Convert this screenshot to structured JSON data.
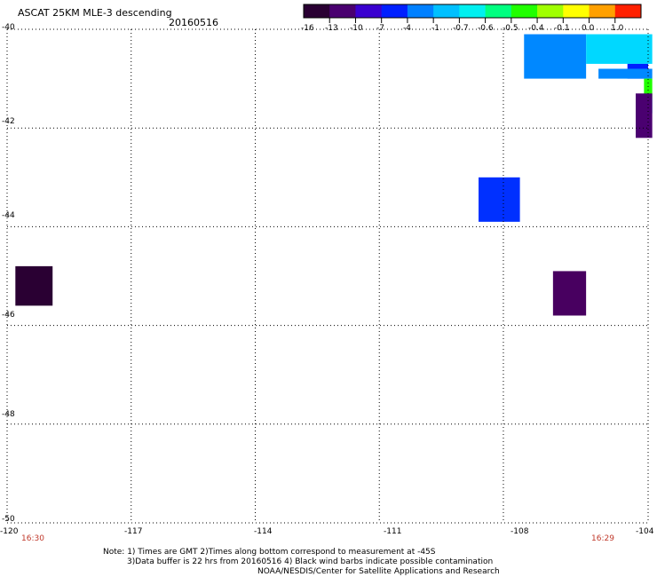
{
  "header": {
    "title": "ASCAT 25KM MLE-3 descending",
    "date": "20160516"
  },
  "colorbar": {
    "labels": [
      "-16",
      "-13",
      "-10",
      "-7",
      "-4",
      "-1",
      "-0.7",
      "-0.6",
      "-0.5",
      "-0.4",
      "-0.1",
      "0.0",
      "1.0"
    ],
    "colors": [
      "#2a0033",
      "#4a0070",
      "#3a00d0",
      "#0020ff",
      "#0080ff",
      "#00c0ff",
      "#00f0f0",
      "#00ff80",
      "#20ff00",
      "#a0ff00",
      "#ffff00",
      "#ffa000",
      "#ff2000"
    ]
  },
  "axes": {
    "lat_labels": [
      "-40",
      "-42",
      "-44",
      "-46",
      "-48",
      "-50"
    ],
    "lon_labels": [
      "-120",
      "-117",
      "-114",
      "-111",
      "-108",
      "-104"
    ],
    "lat_range": [
      -50,
      -40
    ],
    "lon_range": [
      -120,
      -104.5
    ]
  },
  "times": {
    "left": "16:30",
    "right": "16:29"
  },
  "notes": {
    "line1": "Note: 1) Times are GMT 2)Times along bottom correspond to measurement at -45S",
    "line2": "3)Data buffer is 22 hrs from 20160516 4) Black wind barbs indicate possible contamination",
    "line3": "NOAA/NESDIS/Center for Satellite Applications and Research"
  },
  "data_cells": [
    {
      "lon": [
        -107.5,
        -106.0
      ],
      "lat": [
        -40.1,
        -41.0
      ],
      "color": "#0088ff"
    },
    {
      "lon": [
        -106.0,
        -104.4
      ],
      "lat": [
        -40.1,
        -40.7
      ],
      "color": "#00d8ff"
    },
    {
      "lon": [
        -105.0,
        -104.5
      ],
      "lat": [
        -40.7,
        -41.0
      ],
      "color": "#0020ff"
    },
    {
      "lon": [
        -105.7,
        -104.4
      ],
      "lat": [
        -40.8,
        -41.0
      ],
      "color": "#0088ff"
    },
    {
      "lon": [
        -104.6,
        -104.4
      ],
      "lat": [
        -41.0,
        -41.4
      ],
      "color": "#20ff00"
    },
    {
      "lon": [
        -104.6,
        -104.4
      ],
      "lat": [
        -41.4,
        -41.7
      ],
      "color": "#00c0ff"
    },
    {
      "lon": [
        -104.8,
        -104.4
      ],
      "lat": [
        -41.3,
        -42.2
      ],
      "color": "#4a0070"
    },
    {
      "lon": [
        -108.6,
        -107.6
      ],
      "lat": [
        -43.0,
        -43.9
      ],
      "color": "#0030ff"
    },
    {
      "lon": [
        -119.8,
        -118.9
      ],
      "lat": [
        -44.8,
        -45.6
      ],
      "color": "#2a0033"
    },
    {
      "lon": [
        -106.8,
        -106.0
      ],
      "lat": [
        -44.9,
        -45.8
      ],
      "color": "#480060"
    }
  ]
}
